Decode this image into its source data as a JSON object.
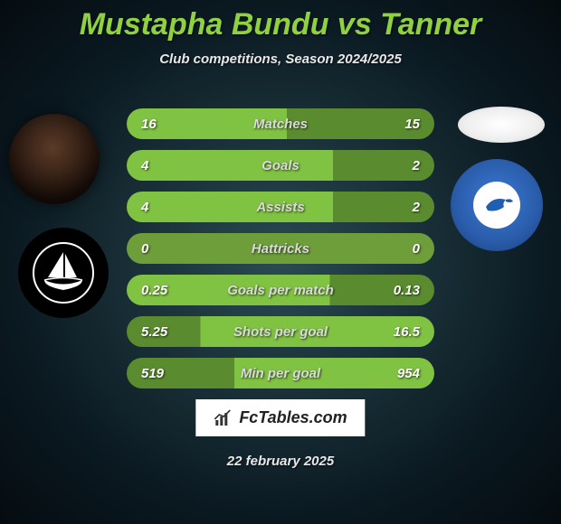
{
  "title_color": "#8fd13f",
  "title": "Mustapha Bundu vs Tanner",
  "subtitle": "Club competitions, Season 2024/2025",
  "player1": {
    "name": "Mustapha Bundu",
    "club": "Plymouth"
  },
  "player2": {
    "name": "Tanner",
    "club": "Cardiff City FC"
  },
  "row_label_color": "#dadada",
  "row_value_color": "#ffffff",
  "stats": [
    {
      "label": "Matches",
      "p1": "16",
      "p2": "15",
      "fill1": 0.52,
      "c1": "#80c242",
      "c2": "#5a8c2f"
    },
    {
      "label": "Goals",
      "p1": "4",
      "p2": "2",
      "fill1": 0.67,
      "c1": "#80c242",
      "c2": "#5a8c2f"
    },
    {
      "label": "Assists",
      "p1": "4",
      "p2": "2",
      "fill1": 0.67,
      "c1": "#80c242",
      "c2": "#5a8c2f"
    },
    {
      "label": "Hattricks",
      "p1": "0",
      "p2": "0",
      "fill1": 0.5,
      "c1": "#6e9e3a",
      "c2": "#6e9e3a"
    },
    {
      "label": "Goals per match",
      "p1": "0.25",
      "p2": "0.13",
      "fill1": 0.66,
      "c1": "#80c242",
      "c2": "#5a8c2f"
    },
    {
      "label": "Shots per goal",
      "p1": "5.25",
      "p2": "16.5",
      "fill1": 0.24,
      "c1": "#5a8c2f",
      "c2": "#80c242"
    },
    {
      "label": "Min per goal",
      "p1": "519",
      "p2": "954",
      "fill1": 0.35,
      "c1": "#5a8c2f",
      "c2": "#80c242"
    }
  ],
  "fctables_label": "FcTables.com",
  "date": "22 february 2025"
}
